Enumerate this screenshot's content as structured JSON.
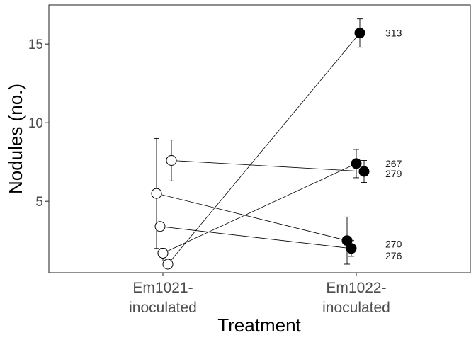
{
  "chart_data": {
    "type": "scatter",
    "xlabel": "Treatment",
    "ylabel": "Nodules (no.)",
    "categories": [
      "Em1021-\ninoculated",
      "Em1022-\ninoculated"
    ],
    "ylim": [
      0,
      17
    ],
    "yticks": [
      5,
      10,
      15
    ],
    "grid": false,
    "legend": "none",
    "series": [
      {
        "name": "313",
        "values": [
          1.0,
          15.7
        ],
        "err_low": [
          1.0,
          14.8
        ],
        "err_high": [
          1.0,
          16.6
        ]
      },
      {
        "name": "267",
        "values": [
          1.7,
          7.4
        ],
        "err_low": [
          1.2,
          6.5
        ],
        "err_high": [
          2.0,
          8.3
        ]
      },
      {
        "name": "279",
        "values": [
          7.6,
          6.9
        ],
        "err_low": [
          6.3,
          6.2
        ],
        "err_high": [
          8.9,
          7.6
        ]
      },
      {
        "name": "270",
        "values": [
          5.5,
          2.5
        ],
        "err_low": [
          2.0,
          1.0
        ],
        "err_high": [
          9.0,
          4.0
        ]
      },
      {
        "name": "276",
        "values": [
          3.4,
          2.0
        ],
        "err_low": [
          3.4,
          1.5
        ],
        "err_high": [
          3.4,
          2.5
        ]
      }
    ],
    "open_marker_category": "Em1021-\ninoculated",
    "filled_marker_category": "Em1022-\ninoculated",
    "colors": {
      "panel_border": "#333333",
      "line": "#000000",
      "open_fill": "#ffffff",
      "filled_fill": "#000000",
      "tick_text": "#4d4d4d"
    }
  }
}
